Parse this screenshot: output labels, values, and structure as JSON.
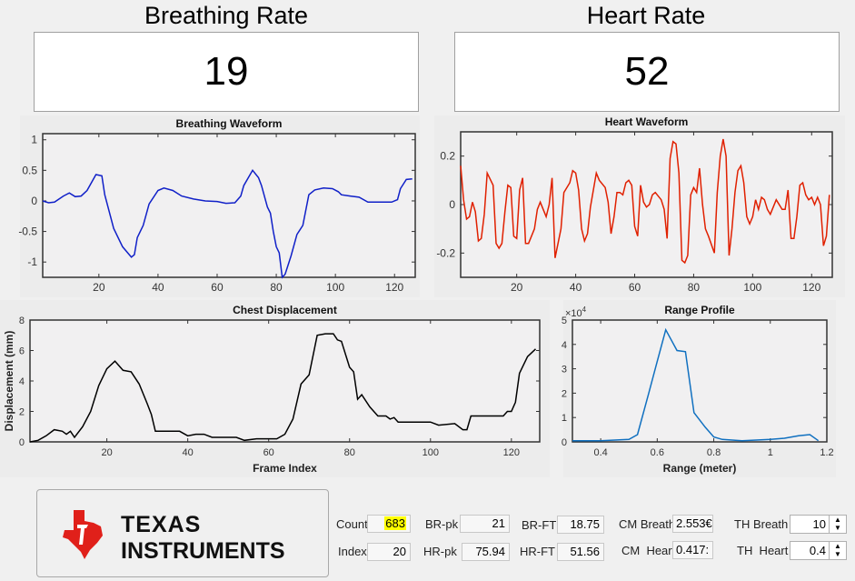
{
  "breathing": {
    "title": "Breathing Rate",
    "value": "19"
  },
  "heart": {
    "title": "Heart Rate",
    "value": "52"
  },
  "colors": {
    "breath": "#1020c8",
    "heart": "#e02000",
    "chest": "#000000",
    "range": "#1070c0",
    "highlight": "#ffff00",
    "ti_red": "#e0201a"
  },
  "logo": {
    "line1": "Texas",
    "line2": "Instruments"
  },
  "fields": {
    "count": {
      "label": "Count",
      "value": "683"
    },
    "index": {
      "label": "Index",
      "value": "20"
    },
    "br_pk": {
      "label": "BR-pk",
      "value": "21"
    },
    "hr_pk": {
      "label": "HR-pk",
      "value": "75.94"
    },
    "br_ft": {
      "label": "BR-FT",
      "value": "18.75"
    },
    "hr_ft": {
      "label": "HR-FT",
      "value": "51.56"
    },
    "cm_breath": {
      "label": "CM Breath",
      "value": "2.553€"
    },
    "cm_heart": {
      "label": "CM  Heart",
      "value": "0.417:"
    },
    "th_breath": {
      "label": "TH Breath",
      "value": "10"
    },
    "th_heart": {
      "label": "TH  Heart",
      "value": "0.4"
    }
  },
  "chart_data": [
    {
      "id": "breath",
      "type": "line",
      "title": "Breathing Waveform",
      "xlabel": "",
      "ylabel": "",
      "xlim": [
        1,
        127
      ],
      "ylim": [
        -1.25,
        1.1
      ],
      "xticks": [
        20,
        40,
        60,
        80,
        100,
        120
      ],
      "yticks": [
        1,
        0.5,
        0,
        -0.5,
        -1
      ],
      "ytick_labels": [
        "1",
        "0.5",
        "0",
        "-0.5",
        "-1"
      ],
      "points": [
        [
          1,
          0
        ],
        [
          3,
          -0.03
        ],
        [
          5,
          -0.02
        ],
        [
          8,
          0.08
        ],
        [
          10,
          0.13
        ],
        [
          12,
          0.07
        ],
        [
          14,
          0.08
        ],
        [
          16,
          0.17
        ],
        [
          19,
          0.43
        ],
        [
          21,
          0.41
        ],
        [
          22,
          0.1
        ],
        [
          25,
          -0.45
        ],
        [
          28,
          -0.75
        ],
        [
          31,
          -0.92
        ],
        [
          32,
          -0.88
        ],
        [
          33,
          -0.6
        ],
        [
          35,
          -0.4
        ],
        [
          37,
          -0.05
        ],
        [
          40,
          0.17
        ],
        [
          42,
          0.21
        ],
        [
          45,
          0.17
        ],
        [
          48,
          0.08
        ],
        [
          52,
          0.03
        ],
        [
          56,
          0
        ],
        [
          60,
          -0.01
        ],
        [
          63,
          -0.04
        ],
        [
          66,
          -0.03
        ],
        [
          68,
          0.08
        ],
        [
          69,
          0.25
        ],
        [
          72,
          0.5
        ],
        [
          74,
          0.38
        ],
        [
          75,
          0.25
        ],
        [
          77,
          -0.1
        ],
        [
          78,
          -0.2
        ],
        [
          79,
          -0.5
        ],
        [
          80,
          -0.75
        ],
        [
          81,
          -0.85
        ],
        [
          82,
          -1.25
        ],
        [
          83,
          -1.2
        ],
        [
          85,
          -0.9
        ],
        [
          87,
          -0.55
        ],
        [
          89,
          -0.4
        ],
        [
          91,
          0.1
        ],
        [
          93,
          0.18
        ],
        [
          96,
          0.21
        ],
        [
          99,
          0.2
        ],
        [
          101,
          0.15
        ],
        [
          102,
          0.1
        ],
        [
          105,
          0.08
        ],
        [
          108,
          0.06
        ],
        [
          111,
          -0.02
        ],
        [
          115,
          -0.02
        ],
        [
          119,
          -0.02
        ],
        [
          121,
          0.02
        ],
        [
          122,
          0.2
        ],
        [
          124,
          0.35
        ],
        [
          126,
          0.36
        ]
      ]
    },
    {
      "id": "heart",
      "type": "line",
      "title": "Heart Waveform",
      "xlabel": "",
      "ylabel": "",
      "xlim": [
        1,
        127
      ],
      "ylim": [
        -0.3,
        0.3
      ],
      "xticks": [
        20,
        40,
        60,
        80,
        100,
        120
      ],
      "yticks": [
        0.2,
        0,
        -0.2
      ],
      "ytick_labels": [
        "0.2",
        "0",
        "-0.2"
      ],
      "points": [
        [
          1,
          0.16
        ],
        [
          2,
          0.02
        ],
        [
          3,
          -0.06
        ],
        [
          4,
          -0.05
        ],
        [
          5,
          0.01
        ],
        [
          6,
          -0.03
        ],
        [
          7,
          -0.15
        ],
        [
          8,
          -0.14
        ],
        [
          9,
          -0.04
        ],
        [
          10,
          0.13
        ],
        [
          12,
          0.08
        ],
        [
          13,
          -0.16
        ],
        [
          14,
          -0.18
        ],
        [
          15,
          -0.16
        ],
        [
          16,
          -0.03
        ],
        [
          17,
          0.08
        ],
        [
          18,
          0.07
        ],
        [
          19,
          -0.13
        ],
        [
          20,
          -0.14
        ],
        [
          21,
          0.06
        ],
        [
          22,
          0.11
        ],
        [
          23,
          -0.16
        ],
        [
          24,
          -0.16
        ],
        [
          26,
          -0.1
        ],
        [
          27,
          -0.02
        ],
        [
          28,
          0.01
        ],
        [
          30,
          -0.05
        ],
        [
          31,
          0.0
        ],
        [
          32,
          0.11
        ],
        [
          33,
          -0.22
        ],
        [
          35,
          -0.1
        ],
        [
          36,
          0.05
        ],
        [
          38,
          0.09
        ],
        [
          39,
          0.14
        ],
        [
          40,
          0.13
        ],
        [
          41,
          0.06
        ],
        [
          42,
          -0.1
        ],
        [
          43,
          -0.15
        ],
        [
          44,
          -0.12
        ],
        [
          45,
          -0.01
        ],
        [
          47,
          0.13
        ],
        [
          48,
          0.1
        ],
        [
          50,
          0.07
        ],
        [
          51,
          0.01
        ],
        [
          52,
          -0.12
        ],
        [
          53,
          -0.05
        ],
        [
          54,
          0.05
        ],
        [
          55,
          0.05
        ],
        [
          56,
          0.04
        ],
        [
          57,
          0.09
        ],
        [
          58,
          0.1
        ],
        [
          59,
          0.08
        ],
        [
          60,
          -0.09
        ],
        [
          61,
          -0.13
        ],
        [
          62,
          0.08
        ],
        [
          63,
          0.01
        ],
        [
          64,
          -0.01
        ],
        [
          65,
          0.0
        ],
        [
          66,
          0.04
        ],
        [
          67,
          0.05
        ],
        [
          69,
          0.02
        ],
        [
          70,
          -0.02
        ],
        [
          71,
          -0.14
        ],
        [
          72,
          0.19
        ],
        [
          73,
          0.26
        ],
        [
          74,
          0.25
        ],
        [
          75,
          0.13
        ],
        [
          76,
          -0.23
        ],
        [
          77,
          -0.24
        ],
        [
          78,
          -0.21
        ],
        [
          79,
          0.04
        ],
        [
          80,
          0.07
        ],
        [
          81,
          0.05
        ],
        [
          82,
          0.15
        ],
        [
          83,
          0.0
        ],
        [
          84,
          -0.1
        ],
        [
          85,
          -0.13
        ],
        [
          87,
          -0.2
        ],
        [
          88,
          0.05
        ],
        [
          89,
          0.2
        ],
        [
          90,
          0.27
        ],
        [
          91,
          0.2
        ],
        [
          92,
          -0.21
        ],
        [
          93,
          -0.1
        ],
        [
          94,
          0.05
        ],
        [
          95,
          0.14
        ],
        [
          96,
          0.16
        ],
        [
          97,
          0.09
        ],
        [
          98,
          -0.05
        ],
        [
          99,
          -0.08
        ],
        [
          100,
          -0.05
        ],
        [
          101,
          0.02
        ],
        [
          102,
          -0.02
        ],
        [
          103,
          0.03
        ],
        [
          104,
          0.02
        ],
        [
          105,
          -0.02
        ],
        [
          106,
          -0.04
        ],
        [
          108,
          0.02
        ],
        [
          110,
          -0.02
        ],
        [
          111,
          -0.02
        ],
        [
          112,
          0.06
        ],
        [
          113,
          -0.14
        ],
        [
          114,
          -0.14
        ],
        [
          115,
          -0.05
        ],
        [
          116,
          0.08
        ],
        [
          117,
          0.09
        ],
        [
          118,
          0.04
        ],
        [
          119,
          0.02
        ],
        [
          120,
          0.03
        ],
        [
          121,
          0.0
        ],
        [
          122,
          0.03
        ],
        [
          123,
          0.0
        ],
        [
          124,
          -0.17
        ],
        [
          125,
          -0.13
        ],
        [
          126,
          0.04
        ]
      ]
    },
    {
      "id": "chest",
      "type": "line",
      "title": "Chest Displacement",
      "xlabel": "Frame Index",
      "ylabel": "Displacement (mm)",
      "xlim": [
        1,
        127
      ],
      "ylim": [
        0,
        8
      ],
      "xticks": [
        20,
        40,
        60,
        80,
        100,
        120
      ],
      "yticks": [
        0,
        2,
        4,
        6,
        8
      ],
      "ytick_labels": [
        "0",
        "2",
        "4",
        "6",
        "8"
      ],
      "points": [
        [
          1,
          0
        ],
        [
          3,
          0.1
        ],
        [
          5,
          0.4
        ],
        [
          7,
          0.8
        ],
        [
          9,
          0.7
        ],
        [
          10,
          0.5
        ],
        [
          11,
          0.7
        ],
        [
          12,
          0.3
        ],
        [
          14,
          1
        ],
        [
          16,
          2
        ],
        [
          18,
          3.7
        ],
        [
          20,
          4.8
        ],
        [
          22,
          5.3
        ],
        [
          24,
          4.7
        ],
        [
          26,
          4.6
        ],
        [
          28,
          3.8
        ],
        [
          30,
          2.5
        ],
        [
          31,
          1.8
        ],
        [
          32,
          0.7
        ],
        [
          36,
          0.7
        ],
        [
          38,
          0.7
        ],
        [
          40,
          0.4
        ],
        [
          42,
          0.5
        ],
        [
          44,
          0.5
        ],
        [
          46,
          0.3
        ],
        [
          52,
          0.3
        ],
        [
          54,
          0.1
        ],
        [
          57,
          0.2
        ],
        [
          62,
          0.2
        ],
        [
          64,
          0.5
        ],
        [
          66,
          1.5
        ],
        [
          68,
          3.8
        ],
        [
          70,
          4.4
        ],
        [
          72,
          7
        ],
        [
          74,
          7.1
        ],
        [
          76,
          7.1
        ],
        [
          77,
          6.7
        ],
        [
          78,
          6.6
        ],
        [
          80,
          4.9
        ],
        [
          81,
          4.6
        ],
        [
          82,
          2.8
        ],
        [
          83,
          3.1
        ],
        [
          85,
          2.3
        ],
        [
          87,
          1.7
        ],
        [
          89,
          1.7
        ],
        [
          90,
          1.5
        ],
        [
          91,
          1.6
        ],
        [
          92,
          1.3
        ],
        [
          100,
          1.3
        ],
        [
          102,
          1.1
        ],
        [
          106,
          1.2
        ],
        [
          108,
          0.8
        ],
        [
          109,
          0.8
        ],
        [
          110,
          1.7
        ],
        [
          118,
          1.7
        ],
        [
          119,
          2
        ],
        [
          120,
          2
        ],
        [
          121,
          2.6
        ],
        [
          122,
          4.5
        ],
        [
          124,
          5.6
        ],
        [
          126,
          6.1
        ]
      ]
    },
    {
      "id": "range",
      "type": "line",
      "title": "Range Profile",
      "xlabel": "Range (meter)",
      "ylabel": "",
      "exponent": "×10",
      "exponent_power": "4",
      "xlim": [
        0.3,
        1.2
      ],
      "ylim": [
        0,
        5
      ],
      "xticks": [
        0.4,
        0.6,
        0.8,
        1,
        1.2
      ],
      "xtick_labels": [
        "0.4",
        "0.6",
        "0.8",
        "1",
        "1.2"
      ],
      "yticks": [
        0,
        1,
        2,
        3,
        4,
        5
      ],
      "ytick_labels": [
        "0",
        "1",
        "2",
        "3",
        "4",
        "5"
      ],
      "points": [
        [
          0.3,
          0.05
        ],
        [
          0.4,
          0.05
        ],
        [
          0.5,
          0.1
        ],
        [
          0.53,
          0.3
        ],
        [
          0.57,
          2
        ],
        [
          0.6,
          3.3
        ],
        [
          0.63,
          4.6
        ],
        [
          0.67,
          3.75
        ],
        [
          0.7,
          3.7
        ],
        [
          0.73,
          1.2
        ],
        [
          0.77,
          0.6
        ],
        [
          0.8,
          0.2
        ],
        [
          0.83,
          0.1
        ],
        [
          0.9,
          0.05
        ],
        [
          1.0,
          0.1
        ],
        [
          1.05,
          0.15
        ],
        [
          1.1,
          0.25
        ],
        [
          1.14,
          0.3
        ],
        [
          1.17,
          0.05
        ]
      ]
    }
  ]
}
